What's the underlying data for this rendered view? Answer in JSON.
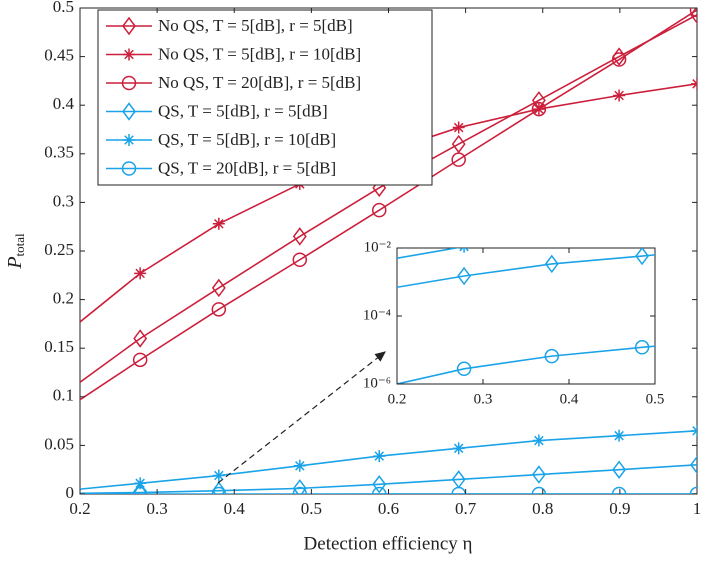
{
  "chart_data": {
    "type": "line",
    "xlabel": "Detection efficiency η",
    "ylabel": "P",
    "ylabel_sub": "total",
    "x": [
      0.2,
      0.278,
      0.38,
      0.485,
      0.588,
      0.691,
      0.795,
      0.899,
      1.0
    ],
    "xlim": [
      0.2,
      1
    ],
    "ylim": [
      0,
      0.5
    ],
    "xticks": [
      0.2,
      0.3,
      0.4,
      0.5,
      0.6,
      0.7,
      0.8,
      0.9,
      1
    ],
    "yticks": [
      0,
      0.05,
      0.1,
      0.15,
      0.2,
      0.25,
      0.3,
      0.35,
      0.4,
      0.45,
      0.5
    ],
    "legend": "upper left",
    "series": [
      {
        "name": "No QS, T = 5[dB], r = 5[dB]",
        "color": "#cc1f3b",
        "marker": "diamond",
        "values": [
          0.115,
          0.16,
          0.212,
          0.265,
          0.315,
          0.36,
          0.405,
          0.45,
          0.493
        ]
      },
      {
        "name": "No QS, T = 5[dB], r = 10[dB]",
        "color": "#cc1f3b",
        "marker": "star",
        "values": [
          0.177,
          0.227,
          0.278,
          0.319,
          0.35,
          0.377,
          0.396,
          0.41,
          0.422
        ]
      },
      {
        "name": "No QS, T = 20[dB], r = 5[dB]",
        "color": "#cc1f3b",
        "marker": "circle",
        "values": [
          0.097,
          0.138,
          0.19,
          0.241,
          0.292,
          0.344,
          0.396,
          0.447,
          0.498
        ]
      },
      {
        "name": "QS, T = 5[dB], r = 5[dB]",
        "color": "#1aa3e8",
        "marker": "diamond",
        "values": [
          0.0007,
          0.0015,
          0.0034,
          0.0058,
          0.01,
          0.015,
          0.02,
          0.025,
          0.03
        ]
      },
      {
        "name": "QS, T = 5[dB], r = 10[dB]",
        "color": "#1aa3e8",
        "marker": "star",
        "values": [
          0.005,
          0.011,
          0.019,
          0.029,
          0.039,
          0.047,
          0.055,
          0.06,
          0.065
        ]
      },
      {
        "name": "QS, T = 20[dB], r = 5[dB]",
        "color": "#1aa3e8",
        "marker": "circle",
        "values": [
          1e-06,
          2.8e-06,
          6.6e-06,
          1.2e-05,
          2e-05,
          3e-05,
          4.5e-05,
          6e-05,
          8e-05
        ]
      }
    ],
    "inset": {
      "xlim": [
        0.2,
        0.5
      ],
      "ylim": [
        1e-06,
        0.01
      ],
      "yscale": "log",
      "xticks": [
        0.2,
        0.3,
        0.4,
        0.5
      ],
      "yticks": [
        {
          "value": 1e-06,
          "label": "10⁻⁶"
        },
        {
          "value": 0.0001,
          "label": "10⁻⁴"
        },
        {
          "value": 0.01,
          "label": "10⁻²"
        }
      ]
    }
  }
}
